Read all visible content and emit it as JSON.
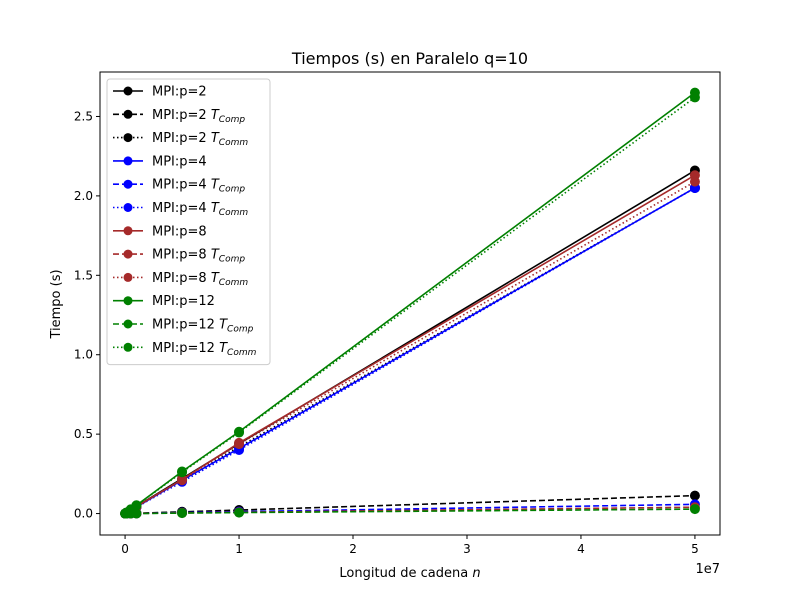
{
  "chart_data": {
    "type": "line",
    "title": "Tiempos (s) en Paralelo q=10",
    "xlabel": "Longitud de cadena n",
    "ylabel": "Tiempo (s)",
    "x_offset_label": "1e7",
    "xlim": [
      -2200000,
      52200000
    ],
    "ylim": [
      -0.135,
      2.78
    ],
    "xticks": [
      0,
      10000000,
      20000000,
      30000000,
      40000000,
      50000000
    ],
    "xtick_labels": [
      "0",
      "1",
      "2",
      "3",
      "4",
      "5"
    ],
    "yticks": [
      0.0,
      0.5,
      1.0,
      1.5,
      2.0,
      2.5
    ],
    "ytick_labels": [
      "0.0",
      "0.5",
      "1.0",
      "1.5",
      "2.0",
      "2.5"
    ],
    "grid": false,
    "legend_position": "top-left",
    "x": [
      10000,
      100000,
      500000,
      1000000,
      5000000,
      10000000,
      50000000
    ],
    "series": [
      {
        "name": "MPI:p=2",
        "color": "#000000",
        "style": "solid",
        "values": [
          0.0,
          0.005,
          0.02,
          0.045,
          0.22,
          0.44,
          2.16
        ]
      },
      {
        "name": "MPI:p=2 T_Comp",
        "color": "#000000",
        "style": "dashed",
        "values": [
          0.0,
          0.0,
          0.001,
          0.002,
          0.011,
          0.022,
          0.113
        ]
      },
      {
        "name": "MPI:p=2 T_Comm",
        "color": "#000000",
        "style": "dotted",
        "values": [
          0.0,
          0.004,
          0.019,
          0.043,
          0.21,
          0.42,
          2.05
        ]
      },
      {
        "name": "MPI:p=4",
        "color": "#0000ff",
        "style": "solid",
        "values": [
          0.0,
          0.004,
          0.02,
          0.042,
          0.21,
          0.41,
          2.05
        ]
      },
      {
        "name": "MPI:p=4 T_Comp",
        "color": "#0000ff",
        "style": "dashed",
        "values": [
          0.0,
          0.0,
          0.0,
          0.001,
          0.006,
          0.012,
          0.058
        ]
      },
      {
        "name": "MPI:p=4 T_Comm",
        "color": "#0000ff",
        "style": "dotted",
        "values": [
          0.0,
          0.004,
          0.02,
          0.04,
          0.2,
          0.4,
          2.05
        ]
      },
      {
        "name": "MPI:p=8",
        "color": "#a52a2a",
        "style": "solid",
        "values": [
          0.0,
          0.004,
          0.021,
          0.044,
          0.215,
          0.445,
          2.13
        ]
      },
      {
        "name": "MPI:p=8 T_Comp",
        "color": "#a52a2a",
        "style": "dashed",
        "values": [
          0.0,
          0.0,
          0.0,
          0.001,
          0.004,
          0.008,
          0.04
        ]
      },
      {
        "name": "MPI:p=8 T_Comm",
        "color": "#a52a2a",
        "style": "dotted",
        "values": [
          0.0,
          0.004,
          0.021,
          0.043,
          0.21,
          0.437,
          2.09
        ]
      },
      {
        "name": "MPI:p=12",
        "color": "#008000",
        "style": "solid",
        "values": [
          0.0,
          0.005,
          0.026,
          0.052,
          0.265,
          0.515,
          2.65
        ]
      },
      {
        "name": "MPI:p=12 T_Comp",
        "color": "#008000",
        "style": "dashed",
        "values": [
          0.0,
          0.0,
          0.0,
          0.0,
          0.003,
          0.006,
          0.028
        ]
      },
      {
        "name": "MPI:p=12 T_Comm",
        "color": "#008000",
        "style": "dotted",
        "values": [
          0.0,
          0.005,
          0.026,
          0.051,
          0.26,
          0.51,
          2.62
        ]
      }
    ]
  }
}
